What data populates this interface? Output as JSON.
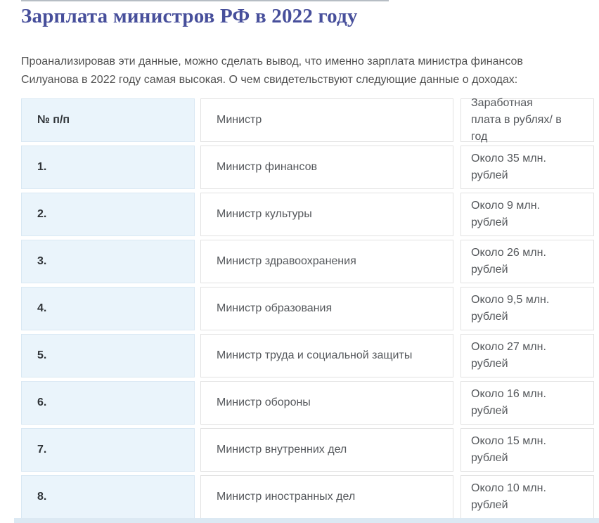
{
  "header": {
    "title": "Зарплата министров РФ в 2022 году",
    "intro_lines": [
      "Проанализировав эти данные, можно сделать вывод, что именно зарплата министра финансов",
      "Силуанова в 2022 году самая высокая. О чем свидетельствуют следующие данные о доходах:"
    ]
  },
  "table": {
    "header": {
      "num": "№ п/п",
      "minister": "Министр",
      "salary": "Заработная плата в рублях/ в год"
    },
    "rows": [
      {
        "num": "1.",
        "minister": "Министр финансов",
        "salary": "Около 35 млн. рублей"
      },
      {
        "num": "2.",
        "minister": "Министр культуры",
        "salary": "Около 9 млн. рублей"
      },
      {
        "num": "3.",
        "minister": "Министр здравоохранения",
        "salary": "Около 26 млн. рублей"
      },
      {
        "num": "4.",
        "minister": "Министр образования",
        "salary": "Около 9,5 млн. рублей"
      },
      {
        "num": "5.",
        "minister": "Министр труда и социальной защиты",
        "salary": "Около 27 млн. рублей"
      },
      {
        "num": "6.",
        "minister": "Министр обороны",
        "salary": "Около 16 млн. рублей"
      },
      {
        "num": "7.",
        "minister": "Министр внутренних дел",
        "salary": "Около 15 млн. рублей"
      },
      {
        "num": "8.",
        "minister": "Министр иностранных дел",
        "salary": "Около 10 млн. рублей"
      }
    ]
  },
  "colors": {
    "title_text": "#474f9b",
    "body_text": "#515151",
    "cell_text": "#55585c",
    "number_text": "#2f3337",
    "number_cell_bg": "#eaf4fb",
    "number_cell_border": "#d9e8f3",
    "white_cell_border": "#e2e2e2",
    "bottom_strip": "#dce9f3",
    "top_cut_line": "#b6bdc4"
  }
}
